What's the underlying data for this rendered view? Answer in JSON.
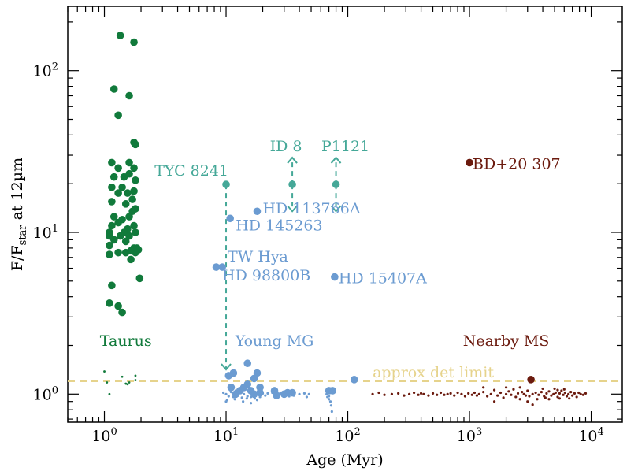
{
  "chart_data": {
    "type": "scatter",
    "xlabel": "Age (Myr)",
    "ylabel": {
      "main": "F/F",
      "sub": "star",
      "tail": " at 12µm"
    },
    "xscale": "log",
    "yscale": "log",
    "xlim": [
      0.5,
      18000
    ],
    "ylim": [
      0.67,
      250
    ],
    "x_ticks": [
      {
        "value": 1,
        "base": "10",
        "exp": "0"
      },
      {
        "value": 10,
        "base": "10",
        "exp": "1"
      },
      {
        "value": 100,
        "base": "10",
        "exp": "2"
      },
      {
        "value": 1000,
        "base": "10",
        "exp": "3"
      },
      {
        "value": 10000,
        "base": "10",
        "exp": "4"
      }
    ],
    "y_ticks": [
      {
        "value": 1,
        "base": "10",
        "exp": "0"
      },
      {
        "value": 10,
        "base": "10",
        "exp": "1"
      },
      {
        "value": 100,
        "base": "10",
        "exp": "2"
      }
    ],
    "colors": {
      "taurus": "#117a3b",
      "young": "#6b9bd1",
      "special": "#45a898",
      "nearby": "#6b1a0e",
      "limit": "#e6d38c",
      "axis": "#000000"
    },
    "detection_limit": {
      "value": 1.2,
      "label": "approx det limit"
    },
    "group_labels": [
      {
        "text": "Taurus",
        "x": 1.5,
        "y": 2.15,
        "series": "taurus"
      },
      {
        "text": "Young MG",
        "x": 25,
        "y": 2.15,
        "series": "young"
      },
      {
        "text": "Nearby MS",
        "x": 2000,
        "y": 2.15,
        "series": "nearby"
      }
    ],
    "series": [
      {
        "key": "taurus",
        "points": [
          [
            1.35,
            165
          ],
          [
            1.75,
            150
          ],
          [
            1.2,
            77
          ],
          [
            1.6,
            70
          ],
          [
            1.3,
            53
          ],
          [
            1.75,
            36
          ],
          [
            1.8,
            35
          ],
          [
            1.15,
            27
          ],
          [
            1.6,
            27
          ],
          [
            1.3,
            25
          ],
          [
            1.2,
            22
          ],
          [
            1.75,
            25
          ],
          [
            1.45,
            22
          ],
          [
            1.6,
            23
          ],
          [
            1.8,
            21
          ],
          [
            1.15,
            19
          ],
          [
            1.4,
            19
          ],
          [
            1.75,
            18
          ],
          [
            1.3,
            17.5
          ],
          [
            1.55,
            17.5
          ],
          [
            1.7,
            16
          ],
          [
            1.15,
            15.5
          ],
          [
            1.5,
            15
          ],
          [
            1.8,
            14
          ],
          [
            1.7,
            13.5
          ],
          [
            1.2,
            12.5
          ],
          [
            1.6,
            12.5
          ],
          [
            1.4,
            12
          ],
          [
            1.3,
            11.5
          ],
          [
            1.75,
            11
          ],
          [
            1.15,
            11
          ],
          [
            1.55,
            10.5
          ],
          [
            1.1,
            10
          ],
          [
            1.45,
            10
          ],
          [
            1.8,
            10
          ],
          [
            1.1,
            9.5
          ],
          [
            1.35,
            9.5
          ],
          [
            1.6,
            9.5
          ],
          [
            1.2,
            9
          ],
          [
            1.5,
            8.8
          ],
          [
            1.1,
            8.3
          ],
          [
            1.75,
            8
          ],
          [
            1.85,
            8
          ],
          [
            1.65,
            7.7
          ],
          [
            1.3,
            7.5
          ],
          [
            1.5,
            7.5
          ],
          [
            1.9,
            7.8
          ],
          [
            1.1,
            7.3
          ],
          [
            1.8,
            7.5
          ],
          [
            1.65,
            6.8
          ],
          [
            1.95,
            5.2
          ],
          [
            1.15,
            4.7
          ],
          [
            1.1,
            3.65
          ],
          [
            1.3,
            3.5
          ],
          [
            1.4,
            3.2
          ]
        ]
      },
      {
        "key": "young",
        "points": [
          [
            10.8,
            12.2
          ],
          [
            18,
            13.5
          ],
          [
            8.3,
            6.1
          ],
          [
            9.3,
            6.1
          ],
          [
            78,
            5.3
          ],
          [
            113,
            1.23
          ],
          [
            10.5,
            1.3
          ],
          [
            11.5,
            1.35
          ],
          [
            15,
            1.55
          ],
          [
            18,
            1.35
          ],
          [
            17,
            1.25
          ],
          [
            15,
            1.15
          ],
          [
            19,
            1.1
          ],
          [
            11,
            1.1
          ],
          [
            13,
            1.05
          ],
          [
            14,
            1.1
          ],
          [
            16,
            1.05
          ],
          [
            19,
            1.02
          ],
          [
            25,
            1.05
          ],
          [
            32,
            1.02
          ],
          [
            35,
            1.02
          ],
          [
            70,
            1.05
          ],
          [
            75,
            1.05
          ],
          [
            12,
            1.0
          ],
          [
            17,
            1.0
          ],
          [
            26,
            0.98
          ],
          [
            30,
            1.0
          ]
        ],
        "small_points": [
          [
            10,
            1.0
          ],
          [
            10.5,
            0.97
          ],
          [
            11,
            1.03
          ],
          [
            11.5,
            0.96
          ],
          [
            12,
            1.05
          ],
          [
            12.5,
            0.98
          ],
          [
            13,
            1.02
          ],
          [
            13.5,
            0.95
          ],
          [
            14,
            1.0
          ],
          [
            14.5,
            1.07
          ],
          [
            15,
            0.97
          ],
          [
            15.5,
            1.03
          ],
          [
            16,
            0.96
          ],
          [
            16.5,
            1.05
          ],
          [
            17,
            0.98
          ],
          [
            17.5,
            1.02
          ],
          [
            18,
            0.92
          ],
          [
            18.5,
            1.0
          ],
          [
            19,
            0.96
          ],
          [
            10.2,
            0.92
          ],
          [
            10.8,
            1.06
          ],
          [
            11.8,
            0.93
          ],
          [
            12.8,
            1.08
          ],
          [
            13.8,
            0.9
          ],
          [
            14.8,
            0.94
          ],
          [
            16,
            0.88
          ],
          [
            17.2,
            0.94
          ],
          [
            20,
            1.01
          ],
          [
            21,
            0.98
          ],
          [
            22,
            1.01
          ],
          [
            24,
            1.02
          ],
          [
            25,
            0.97
          ],
          [
            26,
            1.03
          ],
          [
            27,
            0.99
          ],
          [
            28,
            1.02
          ],
          [
            30,
            0.99
          ],
          [
            32,
            1.03
          ],
          [
            33,
            0.97
          ],
          [
            34,
            1.0
          ],
          [
            36,
            0.98
          ],
          [
            40,
            1.0
          ],
          [
            44,
            1.01
          ],
          [
            46,
            0.96
          ],
          [
            48,
            1.0
          ],
          [
            67,
            1.0
          ],
          [
            68,
            0.96
          ],
          [
            70,
            0.93
          ],
          [
            71,
            1.02
          ],
          [
            72,
            0.9
          ],
          [
            73,
            0.85
          ],
          [
            74,
            0.78
          ],
          [
            72,
            1.07
          ],
          [
            70,
            0.97
          ],
          [
            9.5,
            1.02
          ],
          [
            10,
            0.9
          ]
        ]
      },
      {
        "key": "special",
        "points": [
          [
            10,
            19.8
          ],
          [
            35,
            19.8
          ],
          [
            80,
            19.8
          ]
        ]
      },
      {
        "key": "nearby",
        "points": [
          [
            1000,
            27
          ],
          [
            3200,
            1.23
          ]
        ],
        "small_points": [
          [
            160,
            1.0
          ],
          [
            180,
            1.02
          ],
          [
            200,
            0.99
          ],
          [
            230,
            1.0
          ],
          [
            260,
            1.01
          ],
          [
            290,
            0.98
          ],
          [
            320,
            1.0
          ],
          [
            350,
            1.02
          ],
          [
            380,
            0.99
          ],
          [
            400,
            1.01
          ],
          [
            420,
            1.0
          ],
          [
            460,
            0.98
          ],
          [
            500,
            1.01
          ],
          [
            540,
            0.99
          ],
          [
            580,
            1.02
          ],
          [
            620,
            0.99
          ],
          [
            660,
            1.0
          ],
          [
            700,
            1.01
          ],
          [
            750,
            0.98
          ],
          [
            800,
            1.02
          ],
          [
            860,
            1.0
          ],
          [
            920,
            0.97
          ],
          [
            980,
            1.01
          ],
          [
            1050,
            0.99
          ],
          [
            1100,
            1.02
          ],
          [
            1150,
            0.98
          ],
          [
            1200,
            1.0
          ],
          [
            1300,
            1.03
          ],
          [
            1400,
            0.97
          ],
          [
            1500,
            1.0
          ],
          [
            1600,
            1.06
          ],
          [
            1700,
            0.98
          ],
          [
            1800,
            1.02
          ],
          [
            1900,
            0.95
          ],
          [
            2000,
            1.0
          ],
          [
            2100,
            1.04
          ],
          [
            2200,
            0.99
          ],
          [
            2300,
            1.07
          ],
          [
            2400,
            0.96
          ],
          [
            2500,
            1.01
          ],
          [
            2600,
            0.93
          ],
          [
            2700,
            1.03
          ],
          [
            2800,
            1.0
          ],
          [
            2900,
            0.98
          ],
          [
            3000,
            1.05
          ],
          [
            3100,
            0.97
          ],
          [
            3300,
            1.0
          ],
          [
            3500,
            1.02
          ],
          [
            3700,
            0.99
          ],
          [
            3900,
            1.03
          ],
          [
            4100,
            0.97
          ],
          [
            4300,
            1.01
          ],
          [
            4500,
            1.04
          ],
          [
            4700,
            0.98
          ],
          [
            4900,
            1.0
          ],
          [
            5100,
            1.02
          ],
          [
            5300,
            0.96
          ],
          [
            5500,
            1.01
          ],
          [
            5700,
            1.05
          ],
          [
            5900,
            0.99
          ],
          [
            6100,
            1.02
          ],
          [
            6300,
            0.97
          ],
          [
            6500,
            1.0
          ],
          [
            6800,
            1.03
          ],
          [
            7000,
            0.98
          ],
          [
            7300,
            1.01
          ],
          [
            7600,
            0.96
          ],
          [
            7900,
            1.02
          ],
          [
            8200,
            1.0
          ],
          [
            8600,
            0.99
          ],
          [
            9000,
            1.01
          ],
          [
            2000,
            1.1
          ],
          [
            2600,
            1.1
          ],
          [
            3000,
            0.9
          ],
          [
            3300,
            0.86
          ],
          [
            3600,
            0.93
          ],
          [
            4000,
            1.08
          ],
          [
            4500,
            0.93
          ],
          [
            5000,
            1.08
          ],
          [
            5500,
            0.94
          ],
          [
            6000,
            1.07
          ],
          [
            6600,
            0.94
          ],
          [
            1300,
            1.1
          ],
          [
            1600,
            0.9
          ],
          [
            5300,
            1.06
          ],
          [
            4200,
            0.95
          ]
        ]
      }
    ],
    "annotations": [
      {
        "text": "TYC 8241",
        "x": 10,
        "y": 19.8,
        "series": "special",
        "anchor": "end",
        "dx": 3,
        "dy": -11
      },
      {
        "text": "ID 8",
        "x": 35,
        "y": 19.8,
        "series": "special",
        "anchor": "middle",
        "dx": -8,
        "dy": -42
      },
      {
        "text": "P1121",
        "x": 80,
        "y": 19.8,
        "series": "special",
        "anchor": "middle",
        "dx": 12,
        "dy": -42
      },
      {
        "text": "HD 113766A",
        "x": 18,
        "y": 13.5,
        "series": "young",
        "anchor": "start",
        "dx": 7,
        "dy": 3
      },
      {
        "text": "HD 145263",
        "x": 10.8,
        "y": 12.2,
        "series": "young",
        "anchor": "start",
        "dx": 7,
        "dy": 15
      },
      {
        "text": "TW Hya",
        "x": 10,
        "y": 6.1,
        "series": "young",
        "anchor": "start",
        "dx": 2,
        "dy": -7
      },
      {
        "text": "HD 98800B",
        "x": 10,
        "y": 6.1,
        "series": "young",
        "anchor": "start",
        "dx": -5,
        "dy": 17
      },
      {
        "text": "HD 15407A",
        "x": 78,
        "y": 5.3,
        "series": "young",
        "anchor": "start",
        "dx": 5,
        "dy": 8
      },
      {
        "text": "BD+20 307",
        "x": 1000,
        "y": 27,
        "series": "nearby",
        "anchor": "start",
        "dx": 4,
        "dy": 8
      }
    ],
    "arrows": [
      {
        "x": 10,
        "from": 19.8,
        "to": 1.42,
        "dir": "down",
        "series": "special"
      },
      {
        "x": 35,
        "from": 19.8,
        "to": 29,
        "dir": "up",
        "series": "special"
      },
      {
        "x": 35,
        "from": 19.8,
        "to": 13.5,
        "dir": "down",
        "series": "special"
      },
      {
        "x": 80,
        "from": 19.8,
        "to": 29,
        "dir": "up",
        "series": "special"
      },
      {
        "x": 80,
        "from": 19.8,
        "to": 13.5,
        "dir": "down",
        "series": "special"
      }
    ]
  }
}
